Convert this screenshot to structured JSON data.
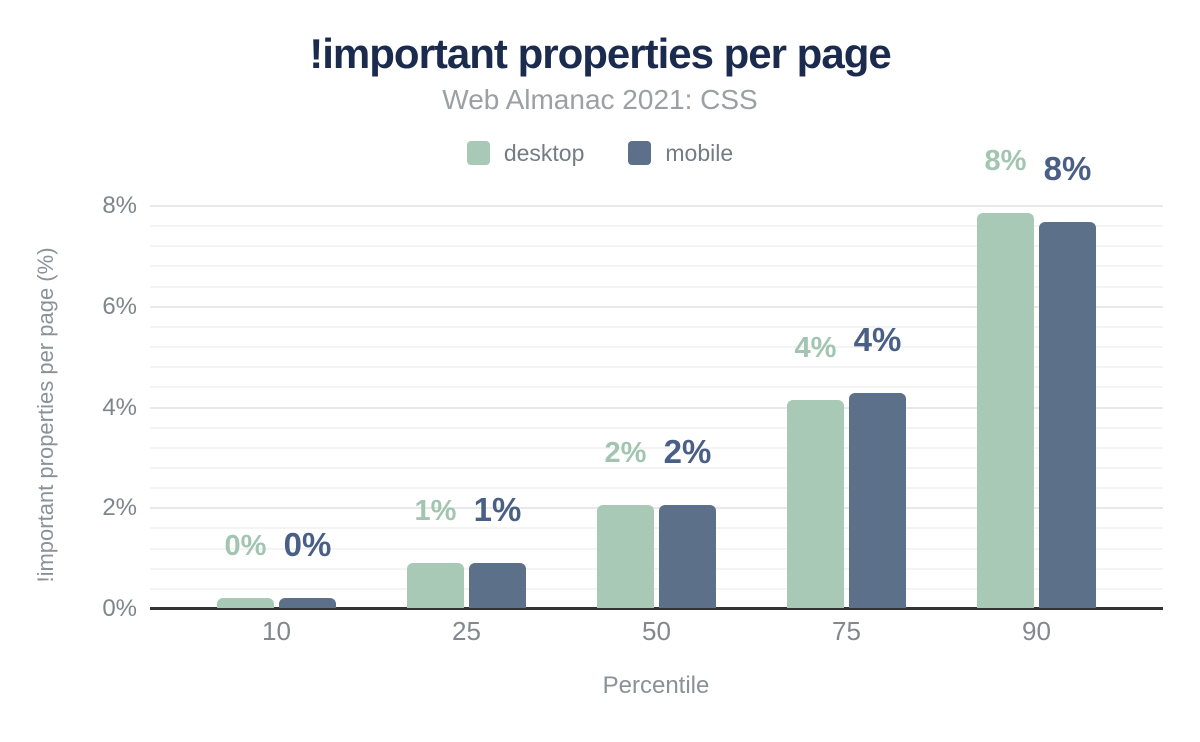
{
  "page": {
    "background": "#ffffff"
  },
  "colors": {
    "title": "#1b2b4e",
    "subtitle": "#9aa0a3",
    "legend_text": "#747c84",
    "y_tick_text": "#7f858b",
    "x_tick_text": "#82888e",
    "axis_title_text": "#8b9196",
    "axis_line": "#333333"
  },
  "chart_data": {
    "type": "bar",
    "title": "!important properties per page",
    "subtitle": "Web Almanac 2021: CSS",
    "xlabel": "Percentile",
    "ylabel": "!important properties per page (%)",
    "categories": [
      "10",
      "25",
      "50",
      "75",
      "90"
    ],
    "series": [
      {
        "name": "desktop",
        "color": "#a7c9b5",
        "label_color": "#a2c5b1",
        "values": [
          0.2,
          0.9,
          2.05,
          4.13,
          7.84
        ],
        "value_labels": [
          "0%",
          "1%",
          "2%",
          "4%",
          "8%"
        ]
      },
      {
        "name": "mobile",
        "color": "#5d7089",
        "label_color": "#4a5f85",
        "values": [
          0.2,
          0.9,
          2.05,
          4.27,
          7.66
        ],
        "value_labels": [
          "0%",
          "1%",
          "2%",
          "4%",
          "8%"
        ]
      }
    ],
    "y_ticks": [
      "0%",
      "2%",
      "4%",
      "6%",
      "8%"
    ],
    "ylim": [
      0,
      8
    ],
    "grid": {
      "minor_step": 0.4,
      "major_step": 2,
      "minor_color": "#f4f4f4",
      "major_color": "#e9e9e9"
    },
    "legend_position": "top"
  }
}
